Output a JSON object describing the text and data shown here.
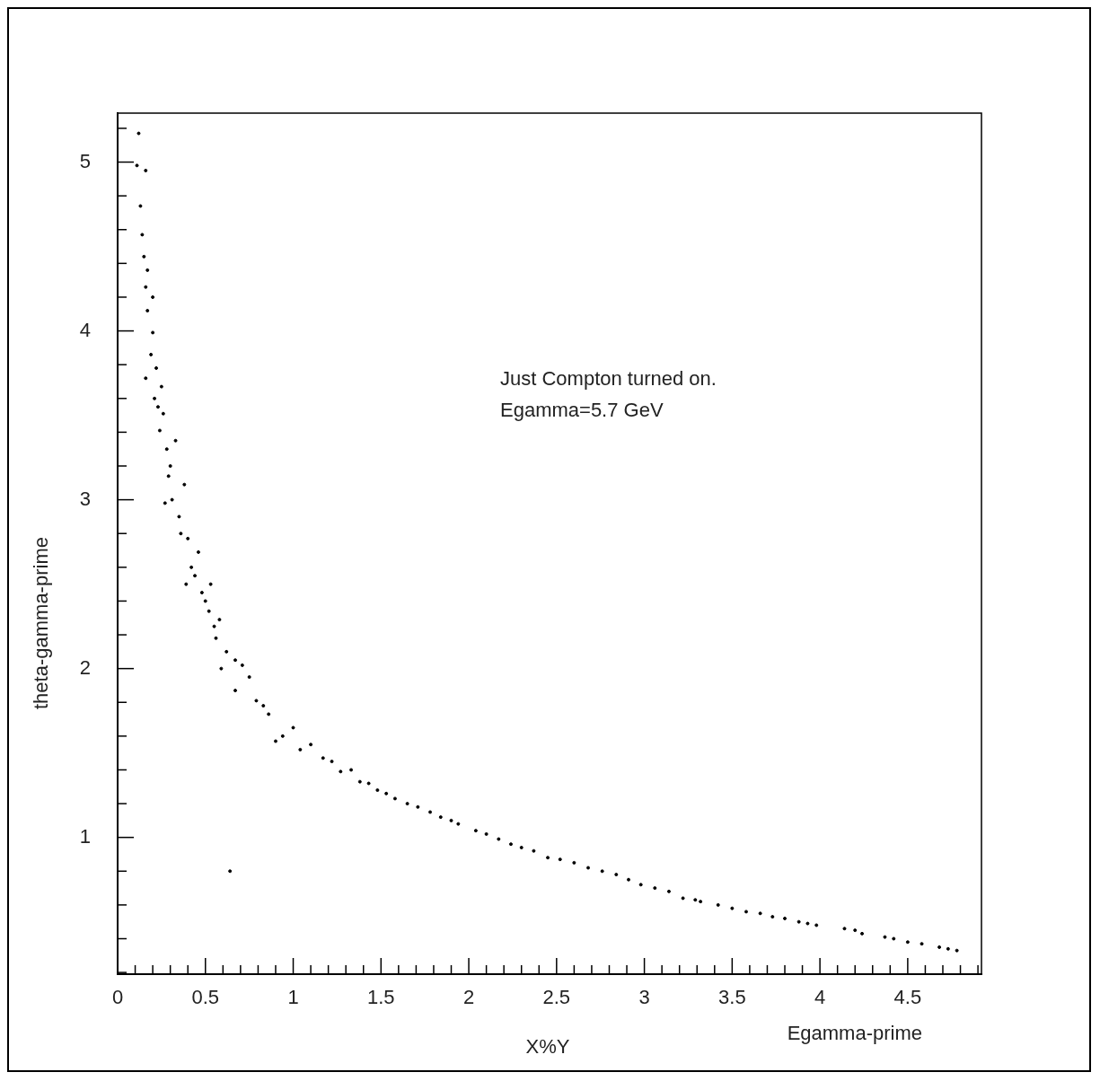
{
  "chart_data": {
    "type": "scatter",
    "xlabel": "Egamma-prime",
    "ylabel": "theta-gamma-prime",
    "annotations": [
      "Just Compton turned on.",
      "Egamma=5.7 GeV",
      "X%Y"
    ],
    "x": [
      0.12,
      0.11,
      0.16,
      0.13,
      0.14,
      0.15,
      0.17,
      0.16,
      0.2,
      0.17,
      0.2,
      0.19,
      0.22,
      0.16,
      0.25,
      0.26,
      0.24,
      0.28,
      0.33,
      0.29,
      0.27,
      0.35,
      0.38,
      0.4,
      0.46,
      0.39,
      0.48,
      0.53,
      0.52,
      0.58,
      0.56,
      0.59,
      0.67,
      0.71,
      0.67,
      0.79,
      0.86,
      0.9,
      0.94,
      1.04,
      1.17,
      1.27,
      1.38,
      1.48,
      1.58,
      1.71,
      1.84,
      1.94,
      2.04,
      2.17,
      2.3,
      2.45,
      2.6,
      2.76,
      2.91,
      3.06,
      3.22,
      3.29,
      3.42,
      3.58,
      3.73,
      3.88,
      3.98,
      4.14,
      4.24,
      4.37,
      4.5,
      4.68,
      4.78,
      0.64,
      0.21,
      0.23,
      0.3,
      0.31,
      0.36,
      0.42,
      0.44,
      0.5,
      0.55,
      0.62,
      0.75,
      0.83,
      1.0,
      1.1,
      1.22,
      1.33,
      1.43,
      1.53,
      1.65,
      1.78,
      1.9,
      2.1,
      2.24,
      2.37,
      2.52,
      2.68,
      2.84,
      2.98,
      3.14,
      3.32,
      3.5,
      3.66,
      3.8,
      3.93,
      4.2,
      4.42,
      4.58,
      4.73
    ],
    "values": [
      5.17,
      4.98,
      4.95,
      4.74,
      4.57,
      4.44,
      4.36,
      4.26,
      4.2,
      4.12,
      3.99,
      3.86,
      3.78,
      3.72,
      3.67,
      3.51,
      3.41,
      3.3,
      3.35,
      3.14,
      2.98,
      2.9,
      3.09,
      2.77,
      2.69,
      2.5,
      2.45,
      2.5,
      2.34,
      2.29,
      2.18,
      2.0,
      2.05,
      2.02,
      1.87,
      1.81,
      1.73,
      1.57,
      1.6,
      1.52,
      1.47,
      1.39,
      1.33,
      1.28,
      1.23,
      1.18,
      1.12,
      1.08,
      1.04,
      0.99,
      0.94,
      0.88,
      0.85,
      0.8,
      0.75,
      0.7,
      0.64,
      0.63,
      0.6,
      0.56,
      0.53,
      0.5,
      0.48,
      0.46,
      0.43,
      0.41,
      0.38,
      0.35,
      0.33,
      0.8,
      3.6,
      3.55,
      3.2,
      3.0,
      2.8,
      2.6,
      2.55,
      2.4,
      2.25,
      2.1,
      1.95,
      1.78,
      1.65,
      1.55,
      1.45,
      1.4,
      1.32,
      1.26,
      1.2,
      1.15,
      1.1,
      1.02,
      0.96,
      0.92,
      0.87,
      0.82,
      0.78,
      0.72,
      0.68,
      0.62,
      0.58,
      0.55,
      0.52,
      0.49,
      0.45,
      0.4,
      0.37,
      0.34
    ],
    "color": "#000000",
    "marker": "circle",
    "grid": false,
    "legend": false,
    "xlim": [
      0,
      4.92
    ],
    "ylim": [
      0.19,
      5.29
    ],
    "xticks": [
      0,
      {
        "value": 0.1,
        "label": null
      },
      {
        "value": 0.2,
        "label": null
      },
      {
        "value": 0.3,
        "label": null
      },
      {
        "value": 0.4,
        "label": null
      },
      0.5,
      {
        "value": 0.6,
        "label": null
      },
      {
        "value": 0.7,
        "label": null
      },
      {
        "value": 0.8,
        "label": null
      },
      {
        "value": 0.9,
        "label": null
      },
      1,
      {
        "value": 1.1,
        "label": null
      },
      {
        "value": 1.2,
        "label": null
      },
      {
        "value": 1.3,
        "label": null
      },
      {
        "value": 1.4,
        "label": null
      },
      1.5,
      {
        "value": 1.6,
        "label": null
      },
      {
        "value": 1.7,
        "label": null
      },
      {
        "value": 1.8,
        "label": null
      },
      {
        "value": 1.9,
        "label": null
      },
      2,
      {
        "value": 2.1,
        "label": null
      },
      {
        "value": 2.2,
        "label": null
      },
      {
        "value": 2.3,
        "label": null
      },
      {
        "value": 2.4,
        "label": null
      },
      2.5,
      {
        "value": 2.6,
        "label": null
      },
      {
        "value": 2.7,
        "label": null
      },
      {
        "value": 2.8,
        "label": null
      },
      {
        "value": 2.9,
        "label": null
      },
      3,
      {
        "value": 3.1,
        "label": null
      },
      {
        "value": 3.2,
        "label": null
      },
      {
        "value": 3.3,
        "label": null
      },
      {
        "value": 3.4,
        "label": null
      },
      3.5,
      {
        "value": 3.6,
        "label": null
      },
      {
        "value": 3.7,
        "label": null
      },
      {
        "value": 3.8,
        "label": null
      },
      {
        "value": 3.9,
        "label": null
      },
      4,
      {
        "value": 4.1,
        "label": null
      },
      {
        "value": 4.2,
        "label": null
      },
      {
        "value": 4.3,
        "label": null
      },
      {
        "value": 4.4,
        "label": null
      },
      4.5,
      {
        "value": 4.6,
        "label": null
      },
      {
        "value": 4.7,
        "label": null
      },
      {
        "value": 4.8,
        "label": null
      },
      {
        "value": 4.9,
        "label": null
      }
    ],
    "yticks": [
      {
        "value": 0.2,
        "label": null
      },
      {
        "value": 0.4,
        "label": null
      },
      {
        "value": 0.6,
        "label": null
      },
      {
        "value": 0.8,
        "label": null
      },
      1,
      {
        "value": 1.2,
        "label": null
      },
      {
        "value": 1.4,
        "label": null
      },
      {
        "value": 1.6,
        "label": null
      },
      {
        "value": 1.8,
        "label": null
      },
      2,
      {
        "value": 2.2,
        "label": null
      },
      {
        "value": 2.4,
        "label": null
      },
      {
        "value": 2.6,
        "label": null
      },
      {
        "value": 2.8,
        "label": null
      },
      3,
      {
        "value": 3.2,
        "label": null
      },
      {
        "value": 3.4,
        "label": null
      },
      {
        "value": 3.6,
        "label": null
      },
      {
        "value": 3.8,
        "label": null
      },
      4,
      {
        "value": 4.2,
        "label": null
      },
      {
        "value": 4.4,
        "label": null
      },
      {
        "value": 4.6,
        "label": null
      },
      {
        "value": 4.8,
        "label": null
      },
      5,
      {
        "value": 5.2,
        "label": null
      }
    ]
  }
}
